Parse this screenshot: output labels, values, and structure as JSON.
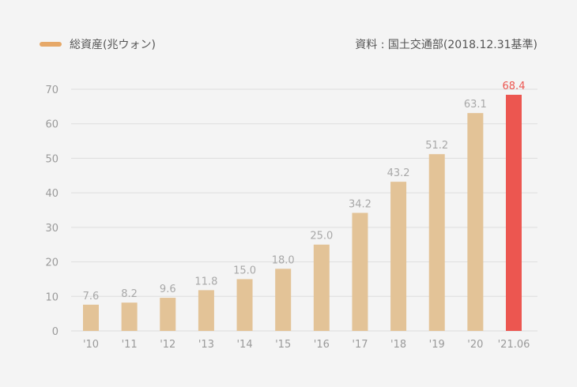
{
  "legend": {
    "label": "総資産(兆ウォン)"
  },
  "source_note": "資料 : 国土交通部(2018.12.31基準)",
  "chart_data": {
    "type": "bar",
    "categories": [
      "'10",
      "'11",
      "'12",
      "'13",
      "'14",
      "'15",
      "'16",
      "'17",
      "'18",
      "'19",
      "'20",
      "'21.06"
    ],
    "series": [
      {
        "name": "総資産(兆ウォン)",
        "values": [
          7.6,
          8.2,
          9.6,
          11.8,
          15.0,
          18.0,
          25.0,
          34.2,
          43.2,
          51.2,
          63.1,
          68.4
        ],
        "value_labels": [
          "7.6",
          "8.2",
          "9.6",
          "11.8",
          "15.0",
          "18.0",
          "25.0",
          "34.2",
          "43.2",
          "51.2",
          "63.1",
          "68.4"
        ]
      }
    ],
    "yticks": [
      0,
      10,
      20,
      30,
      40,
      50,
      60,
      70
    ],
    "ylim": [
      0,
      70
    ],
    "grid": true,
    "legend_position": "top-left",
    "highlight_index": 11,
    "colors": {
      "bar": "#e3c397",
      "highlight": "#ec5650",
      "label": "#a8a8a8",
      "highlight_label": "#ec5650",
      "grid": "#dddddd",
      "axis_text": "#9a9a9a",
      "legend_swatch": "#e6a868"
    }
  }
}
